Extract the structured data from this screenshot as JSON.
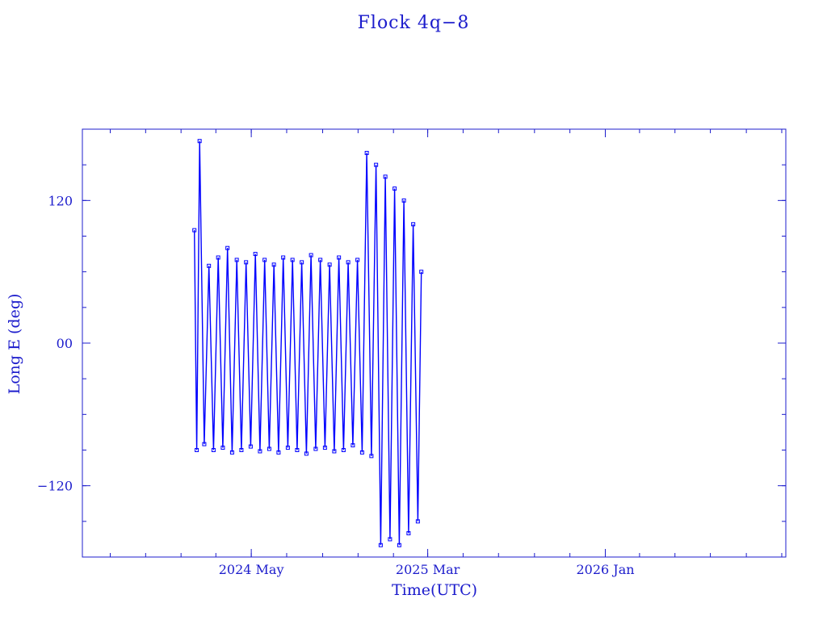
{
  "chart_data": {
    "type": "line",
    "title": "Flock 4q−8",
    "xlabel": "Time(UTC)",
    "ylabel": "Long E (deg)",
    "xlim": [
      "2023-07-15",
      "2026-11-08"
    ],
    "ylim": [
      -180,
      180
    ],
    "x_ticks": [
      {
        "label": "2024 May",
        "date": "2024-05-01"
      },
      {
        "label": "2025 Mar",
        "date": "2025-03-01"
      },
      {
        "label": "2026 Jan",
        "date": "2026-01-01"
      }
    ],
    "y_ticks": [
      {
        "label": "120",
        "value": 120
      },
      {
        "label": "00",
        "value": 0
      },
      {
        "label": "−120",
        "value": -120
      }
    ],
    "grid": false,
    "legend": "none",
    "marker": "open-square",
    "color": "#0000ff",
    "axis_color": "#1c1ccc",
    "series": [
      {
        "x": [
          "2024-01-24",
          "2024-01-28",
          "2024-02-02",
          "2024-02-10",
          "2024-02-18",
          "2024-02-26",
          "2024-03-05",
          "2024-03-13",
          "2024-03-21",
          "2024-03-29",
          "2024-04-06",
          "2024-04-14",
          "2024-04-22",
          "2024-04-30",
          "2024-05-08",
          "2024-05-16",
          "2024-05-24",
          "2024-06-01",
          "2024-06-09",
          "2024-06-17",
          "2024-06-25",
          "2024-07-03",
          "2024-07-11",
          "2024-07-19",
          "2024-07-27",
          "2024-08-04",
          "2024-08-12",
          "2024-08-20",
          "2024-08-28",
          "2024-09-05",
          "2024-09-13",
          "2024-09-21",
          "2024-09-29",
          "2024-10-07",
          "2024-10-15",
          "2024-10-23",
          "2024-10-31",
          "2024-11-08",
          "2024-11-16",
          "2024-11-24",
          "2024-12-02",
          "2024-12-10",
          "2024-12-18",
          "2024-12-26",
          "2025-01-03",
          "2025-01-11",
          "2025-01-19",
          "2025-01-27",
          "2025-02-04",
          "2025-02-12",
          "2025-02-18"
        ],
        "y": [
          95,
          -90,
          170,
          -85,
          65,
          -90,
          72,
          -88,
          80,
          -92,
          70,
          -90,
          68,
          -87,
          75,
          -91,
          70,
          -89,
          66,
          -92,
          72,
          -88,
          70,
          -90,
          68,
          -93,
          74,
          -89,
          70,
          -88,
          66,
          -91,
          72,
          -90,
          68,
          -86,
          70,
          -92,
          160,
          -95,
          150,
          -170,
          140,
          -165,
          130,
          -170,
          120,
          -160,
          100,
          -150,
          60
        ]
      }
    ]
  }
}
